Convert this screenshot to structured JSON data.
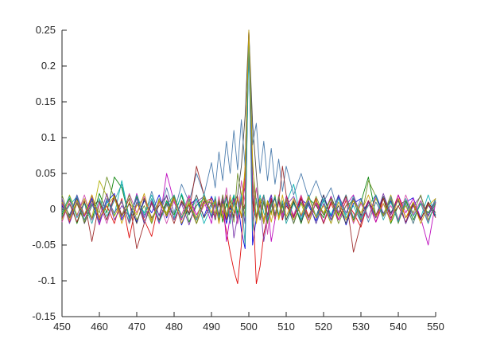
{
  "figure": {
    "background": "#ffffff",
    "axis_color": "#262626",
    "tick_label_color": "#262626"
  },
  "chart_data": {
    "type": "line",
    "title": "",
    "xlabel": "",
    "ylabel": "",
    "legend": false,
    "grid": false,
    "box": false,
    "xlim": [
      450,
      550
    ],
    "ylim": [
      -0.15,
      0.25
    ],
    "x_ticks": [
      {
        "value": 450,
        "label": "450"
      },
      {
        "value": 460,
        "label": "460"
      },
      {
        "value": 470,
        "label": "470"
      },
      {
        "value": 480,
        "label": "480"
      },
      {
        "value": 490,
        "label": "490"
      },
      {
        "value": 500,
        "label": "500"
      },
      {
        "value": 510,
        "label": "510"
      },
      {
        "value": 520,
        "label": "520"
      },
      {
        "value": 530,
        "label": "530"
      },
      {
        "value": 540,
        "label": "540"
      },
      {
        "value": 550,
        "label": "550"
      }
    ],
    "y_ticks": [
      {
        "value": -0.15,
        "label": "-0.15"
      },
      {
        "value": -0.1,
        "label": "-0.1"
      },
      {
        "value": -0.05,
        "label": "-0.05"
      },
      {
        "value": 0,
        "label": "0"
      },
      {
        "value": 0.05,
        "label": "0.05"
      },
      {
        "value": 0.1,
        "label": "0.1"
      },
      {
        "value": 0.15,
        "label": "0.15"
      },
      {
        "value": 0.2,
        "label": "0.2"
      },
      {
        "value": 0.25,
        "label": "0.25"
      }
    ],
    "peak": {
      "x": 500,
      "y": 0.25
    },
    "x": [
      450,
      452,
      454,
      456,
      458,
      460,
      462,
      464,
      466,
      468,
      470,
      472,
      474,
      476,
      478,
      480,
      482,
      484,
      486,
      488,
      490,
      491,
      492,
      493,
      494,
      495,
      496,
      497,
      498,
      499,
      500,
      501,
      502,
      503,
      504,
      505,
      506,
      507,
      508,
      509,
      510,
      512,
      514,
      516,
      518,
      520,
      522,
      524,
      526,
      528,
      530,
      532,
      534,
      536,
      538,
      540,
      542,
      544,
      546,
      548,
      550
    ],
    "series": [
      {
        "name": "blue",
        "color": "#0000DD",
        "values": [
          0.005,
          -0.012,
          0.018,
          -0.008,
          0.015,
          -0.02,
          0.01,
          0.022,
          -0.015,
          0.008,
          -0.018,
          0.012,
          -0.005,
          0.02,
          -0.012,
          0.016,
          -0.022,
          0.006,
          0.014,
          -0.01,
          0.018,
          0.005,
          -0.015,
          0.01,
          -0.02,
          0.002,
          -0.012,
          0.015,
          -0.03,
          -0.055,
          0.25,
          -0.05,
          -0.012,
          0.01,
          -0.018,
          0.006,
          0.02,
          -0.008,
          0.015,
          -0.015,
          0.01,
          -0.02,
          0.014,
          0.005,
          -0.016,
          0.02,
          -0.01,
          0.018,
          -0.022,
          0.008,
          0.015,
          -0.012,
          0.02,
          -0.006,
          0.012,
          -0.018,
          0.01,
          0.016,
          -0.014,
          0.006,
          -0.01
        ]
      },
      {
        "name": "green",
        "color": "#007F00",
        "values": [
          -0.008,
          0.015,
          -0.02,
          0.01,
          -0.015,
          0.022,
          -0.005,
          0.045,
          0.03,
          -0.012,
          0.018,
          -0.02,
          0.008,
          -0.015,
          0.012,
          -0.008,
          0.02,
          -0.018,
          0.005,
          0.015,
          -0.01,
          -0.005,
          0.012,
          -0.018,
          0.008,
          -0.012,
          0.02,
          -0.005,
          0.01,
          0.0,
          0.24,
          0.01,
          -0.015,
          0.008,
          -0.02,
          0.012,
          -0.005,
          0.018,
          -0.01,
          0.005,
          -0.015,
          0.01,
          -0.02,
          0.015,
          0.005,
          -0.012,
          0.018,
          -0.008,
          0.02,
          -0.015,
          0.01,
          0.045,
          -0.01,
          0.015,
          -0.02,
          0.005,
          0.012,
          -0.015,
          0.008,
          -0.005,
          0.01
        ]
      },
      {
        "name": "red",
        "color": "#DD0000",
        "values": [
          0.012,
          -0.018,
          0.008,
          -0.01,
          0.02,
          -0.015,
          0.005,
          -0.02,
          0.015,
          -0.04,
          0.01,
          -0.015,
          -0.038,
          0.012,
          -0.008,
          0.018,
          -0.012,
          0.006,
          -0.02,
          0.01,
          0.015,
          -0.01,
          0.008,
          -0.005,
          -0.03,
          -0.06,
          -0.085,
          -0.104,
          -0.05,
          0.06,
          0.25,
          0.02,
          -0.104,
          -0.08,
          -0.035,
          -0.01,
          0.015,
          -0.008,
          0.012,
          -0.015,
          0.005,
          -0.012,
          0.018,
          -0.01,
          0.015,
          -0.02,
          0.008,
          -0.015,
          0.012,
          -0.005,
          -0.025,
          0.01,
          -0.018,
          0.015,
          -0.008,
          0.02,
          -0.012,
          0.005,
          -0.015,
          0.01,
          -0.008
        ]
      },
      {
        "name": "cyan",
        "color": "#00AEAE",
        "values": [
          -0.01,
          0.005,
          0.018,
          -0.015,
          0.008,
          -0.02,
          0.012,
          -0.008,
          0.04,
          -0.012,
          0.015,
          -0.005,
          0.02,
          -0.018,
          0.01,
          -0.012,
          0.022,
          -0.008,
          0.015,
          -0.02,
          0.005,
          0.012,
          -0.008,
          0.018,
          -0.012,
          0.005,
          0.02,
          -0.015,
          0.01,
          -0.02,
          0.23,
          0.015,
          -0.01,
          0.02,
          -0.005,
          -0.018,
          0.012,
          -0.008,
          0.015,
          -0.012,
          0.008,
          0.035,
          -0.015,
          0.01,
          -0.02,
          0.015,
          -0.008,
          0.02,
          -0.012,
          0.005,
          -0.018,
          0.012,
          -0.01,
          0.018,
          -0.005,
          0.015,
          -0.02,
          0.008,
          -0.012,
          0.02,
          -0.01
        ]
      },
      {
        "name": "magenta",
        "color": "#BB00BB",
        "values": [
          0.008,
          -0.015,
          0.02,
          -0.01,
          0.012,
          -0.022,
          0.015,
          -0.005,
          0.01,
          -0.018,
          0.022,
          -0.012,
          0.008,
          -0.02,
          0.05,
          0.01,
          -0.015,
          0.018,
          -0.008,
          0.012,
          -0.02,
          0.015,
          -0.01,
          0.02,
          -0.045,
          -0.01,
          0.015,
          -0.02,
          0.01,
          0.03,
          0.245,
          0.02,
          -0.015,
          0.01,
          -0.02,
          0.008,
          -0.045,
          -0.015,
          0.012,
          -0.008,
          0.018,
          -0.012,
          0.015,
          -0.02,
          0.01,
          -0.008,
          0.018,
          -0.015,
          0.005,
          0.02,
          -0.01,
          0.012,
          -0.018,
          0.008,
          -0.015,
          0.02,
          -0.005,
          0.015,
          -0.012,
          -0.05,
          0.01
        ]
      },
      {
        "name": "olive",
        "color": "#B0B000",
        "values": [
          -0.015,
          0.02,
          -0.008,
          0.015,
          -0.012,
          0.04,
          0.018,
          -0.01,
          0.012,
          -0.02,
          0.005,
          0.015,
          -0.018,
          0.01,
          -0.005,
          0.02,
          -0.012,
          0.015,
          -0.02,
          0.008,
          0.012,
          -0.008,
          0.015,
          -0.012,
          0.02,
          -0.005,
          0.01,
          -0.018,
          0.015,
          0.05,
          0.24,
          0.03,
          -0.01,
          0.015,
          -0.02,
          0.012,
          -0.008,
          0.02,
          -0.015,
          0.005,
          0.012,
          -0.015,
          0.008,
          -0.02,
          0.012,
          -0.005,
          0.015,
          -0.01,
          0.02,
          -0.018,
          0.01,
          -0.012,
          0.015,
          -0.008,
          0.02,
          -0.015,
          0.005,
          -0.02,
          0.012,
          -0.01,
          0.015
        ]
      },
      {
        "name": "darkgray",
        "color": "#3F3F3F",
        "values": [
          0.01,
          -0.008,
          0.015,
          -0.02,
          0.005,
          0.012,
          -0.015,
          0.018,
          -0.01,
          0.008,
          -0.02,
          0.015,
          -0.012,
          0.005,
          0.018,
          -0.015,
          0.01,
          -0.008,
          0.02,
          -0.012,
          0.008,
          -0.015,
          0.01,
          -0.005,
          0.018,
          -0.012,
          0.008,
          0.02,
          0.06,
          0.13,
          0.25,
          0.12,
          0.05,
          -0.015,
          0.01,
          -0.018,
          0.005,
          0.015,
          -0.01,
          0.008,
          -0.015,
          0.012,
          -0.018,
          0.008,
          -0.01,
          0.02,
          -0.015,
          0.005,
          -0.02,
          0.015,
          -0.008,
          0.01,
          -0.012,
          0.018,
          -0.005,
          0.012,
          -0.02,
          0.008,
          -0.015,
          0.01,
          -0.005
        ]
      },
      {
        "name": "steelblue",
        "color": "#4477AA",
        "values": [
          0.012,
          -0.01,
          0.02,
          -0.015,
          0.008,
          -0.018,
          0.015,
          -0.005,
          0.012,
          -0.02,
          0.01,
          -0.012,
          0.025,
          -0.01,
          0.03,
          -0.005,
          0.035,
          0.01,
          0.05,
          0.02,
          0.065,
          0.03,
          0.08,
          0.04,
          0.095,
          0.05,
          0.11,
          0.055,
          0.125,
          0.06,
          0.25,
          0.09,
          0.12,
          0.05,
          0.095,
          0.04,
          0.085,
          0.035,
          0.07,
          0.025,
          0.06,
          0.02,
          0.05,
          0.015,
          0.04,
          0.01,
          0.03,
          -0.005,
          0.02,
          -0.012,
          0.015,
          -0.018,
          0.01,
          -0.01,
          0.018,
          -0.015,
          0.008,
          -0.02,
          0.012,
          -0.008,
          0.015
        ]
      },
      {
        "name": "darkred",
        "color": "#992222",
        "values": [
          -0.012,
          0.008,
          -0.018,
          0.012,
          -0.045,
          0.01,
          -0.015,
          0.02,
          -0.008,
          0.015,
          -0.055,
          -0.02,
          0.01,
          -0.015,
          0.008,
          -0.02,
          0.012,
          -0.005,
          0.06,
          0.02,
          -0.01,
          0.015,
          -0.008,
          0.012,
          -0.015,
          0.005,
          -0.01,
          0.018,
          -0.012,
          0.008,
          0.235,
          0.015,
          -0.01,
          0.005,
          0.02,
          -0.008,
          0.012,
          -0.015,
          0.01,
          0.06,
          0.02,
          -0.01,
          0.015,
          -0.012,
          0.008,
          -0.02,
          0.01,
          -0.005,
          0.018,
          -0.06,
          -0.02,
          0.012,
          -0.008,
          0.015,
          -0.012,
          0.005,
          -0.018,
          0.01,
          -0.015,
          0.008,
          -0.012
        ]
      },
      {
        "name": "purple",
        "color": "#7733AA",
        "values": [
          0.015,
          -0.02,
          0.01,
          -0.008,
          0.018,
          -0.012,
          0.022,
          -0.015,
          0.005,
          -0.01,
          0.015,
          -0.02,
          0.012,
          -0.008,
          0.02,
          -0.015,
          0.008,
          -0.022,
          0.01,
          0.018,
          -0.012,
          0.008,
          -0.018,
          0.015,
          -0.01,
          0.02,
          -0.04,
          -0.01,
          0.015,
          -0.02,
          0.245,
          0.04,
          -0.015,
          0.01,
          -0.045,
          -0.01,
          0.02,
          -0.008,
          0.015,
          -0.012,
          0.005,
          0.018,
          -0.01,
          0.012,
          -0.02,
          0.008,
          -0.015,
          0.02,
          -0.005,
          0.015,
          -0.018,
          0.01,
          -0.012,
          0.022,
          -0.008,
          0.015,
          -0.02,
          0.005,
          0.018,
          -0.01,
          0.012
        ]
      },
      {
        "name": "pink",
        "color": "#CC44AA",
        "values": [
          -0.018,
          0.012,
          -0.01,
          0.02,
          -0.015,
          0.008,
          -0.02,
          0.015,
          -0.012,
          0.022,
          -0.005,
          0.018,
          -0.015,
          0.01,
          -0.02,
          0.012,
          -0.008,
          0.02,
          -0.015,
          0.005,
          0.01,
          -0.012,
          0.018,
          -0.008,
          0.03,
          -0.015,
          0.012,
          -0.02,
          0.04,
          0.01,
          0.24,
          -0.02,
          0.03,
          -0.01,
          0.018,
          -0.035,
          0.008,
          -0.015,
          0.02,
          -0.01,
          0.012,
          -0.008,
          0.02,
          -0.015,
          0.01,
          -0.018,
          0.012,
          -0.005,
          0.015,
          -0.02,
          0.008,
          -0.012,
          0.018,
          -0.01,
          0.005,
          -0.015,
          0.02,
          -0.008,
          0.012,
          -0.018,
          0.01
        ]
      },
      {
        "name": "olivegreen",
        "color": "#6B8E23",
        "values": [
          0.02,
          -0.012,
          0.008,
          -0.018,
          0.012,
          -0.005,
          0.045,
          0.015,
          -0.01,
          0.02,
          -0.015,
          0.005,
          -0.02,
          0.015,
          -0.008,
          0.018,
          -0.012,
          0.01,
          -0.02,
          0.012,
          0.008,
          0.01,
          -0.015,
          0.02,
          -0.008,
          0.012,
          -0.018,
          0.05,
          0.02,
          -0.01,
          0.24,
          0.06,
          0.01,
          -0.015,
          0.012,
          -0.02,
          0.008,
          -0.01,
          0.018,
          -0.005,
          0.015,
          -0.02,
          0.01,
          -0.012,
          0.018,
          -0.008,
          0.015,
          -0.02,
          0.005,
          0.012,
          -0.015,
          0.04,
          0.018,
          -0.01,
          0.015,
          -0.02,
          0.012,
          -0.005,
          0.02,
          -0.015,
          0.008
        ]
      },
      {
        "name": "teal",
        "color": "#20A0A0",
        "values": [
          -0.005,
          0.018,
          -0.012,
          0.008,
          -0.02,
          0.015,
          -0.01,
          0.012,
          0.035,
          -0.015,
          0.02,
          -0.008,
          0.015,
          -0.018,
          0.005,
          0.02,
          -0.012,
          0.008,
          -0.015,
          0.022,
          -0.01,
          0.018,
          -0.012,
          0.005,
          0.015,
          -0.02,
          0.01,
          -0.008,
          0.02,
          -0.05,
          0.235,
          -0.03,
          0.015,
          -0.01,
          0.02,
          -0.015,
          0.005,
          0.018,
          -0.008,
          0.012,
          -0.02,
          0.008,
          -0.015,
          0.02,
          -0.01,
          0.012,
          -0.02,
          0.015,
          -0.008,
          0.018,
          -0.012,
          0.005,
          0.02,
          -0.015,
          0.01,
          -0.018,
          0.015,
          -0.01,
          0.008,
          -0.02,
          0.012
        ]
      },
      {
        "name": "gold",
        "color": "#C8A000",
        "values": [
          0.01,
          -0.015,
          0.012,
          -0.008,
          0.02,
          -0.012,
          0.005,
          0.018,
          -0.02,
          0.01,
          -0.008,
          0.022,
          -0.015,
          0.012,
          -0.01,
          0.015,
          -0.02,
          0.008,
          -0.012,
          0.018,
          -0.005,
          0.012,
          -0.02,
          0.008,
          -0.012,
          0.018,
          -0.005,
          0.015,
          -0.01,
          0.06,
          0.25,
          0.07,
          -0.02,
          0.012,
          -0.015,
          0.01,
          -0.018,
          0.008,
          -0.012,
          0.02,
          -0.01,
          0.015,
          -0.008,
          0.018,
          -0.012,
          0.005,
          -0.02,
          0.01,
          -0.015,
          0.012,
          -0.005,
          0.02,
          -0.01,
          0.008,
          -0.018,
          0.015,
          -0.012,
          0.01,
          -0.02,
          0.005,
          0.015
        ]
      }
    ]
  }
}
